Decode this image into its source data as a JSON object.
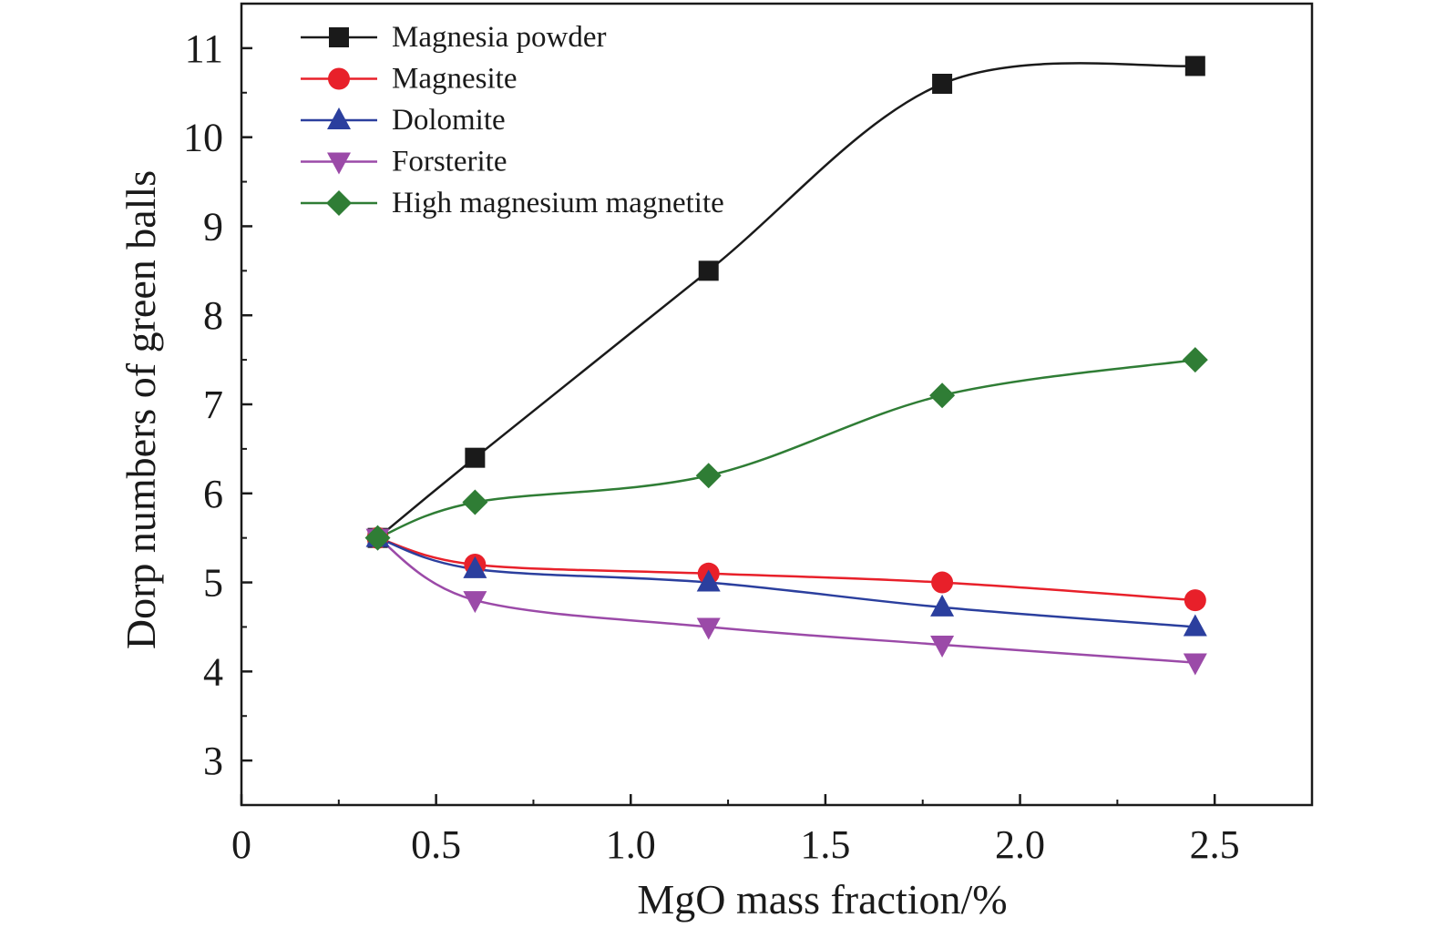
{
  "chart_data": {
    "type": "line",
    "title": "",
    "xlabel": "MgO  mass fraction/%",
    "ylabel": "Dorp numbers of green balls",
    "xlim": [
      0,
      2.75
    ],
    "ylim": [
      2.5,
      11.5
    ],
    "x_ticks": [
      0,
      0.5,
      1.0,
      1.5,
      2.0,
      2.5
    ],
    "x_tick_labels": [
      "0",
      "0.5",
      "1.0",
      "1.5",
      "2.0",
      "2.5"
    ],
    "y_ticks": [
      3,
      4,
      5,
      6,
      7,
      8,
      9,
      10,
      11
    ],
    "y_tick_labels": [
      "3",
      "4",
      "5",
      "6",
      "7",
      "8",
      "9",
      "10",
      "11"
    ],
    "grid": false,
    "legend_position": "top-left",
    "x": [
      0.35,
      0.6,
      1.2,
      1.8,
      2.45
    ],
    "series": [
      {
        "name": "Magnesia powder",
        "values": [
          5.5,
          6.4,
          8.5,
          10.6,
          10.8
        ],
        "color": "#1a1a1a",
        "marker": "square"
      },
      {
        "name": "Magnesite",
        "values": [
          5.5,
          5.2,
          5.1,
          5.0,
          4.8
        ],
        "color": "#e8202a",
        "marker": "circle"
      },
      {
        "name": "Dolomite",
        "values": [
          5.5,
          5.15,
          5.0,
          4.72,
          4.5
        ],
        "color": "#2b3f9e",
        "marker": "triangle-up"
      },
      {
        "name": "Forsterite",
        "values": [
          5.5,
          4.8,
          4.5,
          4.3,
          4.1
        ],
        "color": "#9b4aa8",
        "marker": "triangle-down"
      },
      {
        "name": "High magnesium magnetite",
        "values": [
          5.5,
          5.9,
          6.2,
          7.1,
          7.5
        ],
        "color": "#2f7d35",
        "marker": "diamond"
      }
    ]
  }
}
